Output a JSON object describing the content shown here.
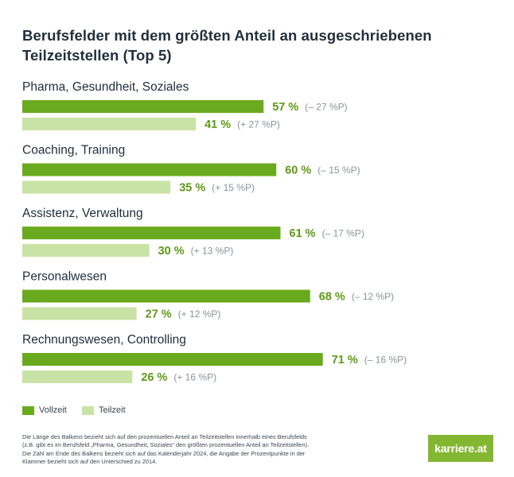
{
  "title_lines": [
    "Berufsfelder mit dem größten Anteil an ausgeschriebenen",
    "Teilzeitstellen (Top 5)"
  ],
  "colors": {
    "vollzeit": "#6aaa1e",
    "teilzeit": "#c9e3a6",
    "vollzeit_text": "#5e9a17",
    "label": "#1e2d3c",
    "change": "#8a949c"
  },
  "chart_data": {
    "type": "bar",
    "orientation": "horizontal",
    "title": "Berufsfelder mit dem größten Anteil an ausgeschriebenen Teilzeitstellen (Top 5)",
    "categories": [
      "Pharma, Gesundheit, Soziales",
      "Coaching, Training",
      "Assistenz, Verwaltung",
      "Personalwesen",
      "Rechnungswesen, Controlling"
    ],
    "series": [
      {
        "name": "Vollzeit",
        "values": [
          57,
          60,
          61,
          68,
          71
        ],
        "value_labels": [
          "57 %",
          "60 %",
          "61 %",
          "68 %",
          "71 %"
        ],
        "change_labels": [
          "(– 27 %P)",
          "(– 15 %P)",
          "(– 17 %P)",
          "(– 12 %P)",
          "(– 16 %P)"
        ]
      },
      {
        "name": "Teilzeit",
        "values": [
          41,
          35,
          30,
          27,
          26
        ],
        "value_labels": [
          "41 %",
          "35 %",
          "30 %",
          "27 %",
          "26 %"
        ],
        "change_labels": [
          "(+ 27 %P)",
          "(+ 15 %P)",
          "(+ 13 %P)",
          "(+ 12 %P)",
          "(+ 16 %P)"
        ]
      }
    ],
    "xlim": [
      0,
      100
    ],
    "grid": false,
    "legend_position": "bottom-left"
  },
  "legend": {
    "vollzeit_label": "Vollzeit",
    "teilzeit_label": "Teilzeit"
  },
  "footnote_lines": [
    "Die Länge des Balkens bezieht sich auf den prozentuellen Anteil an Teilzeitstellen innerhalb eines Berufsfelds",
    "(z.B. gibt es im Berufsfeld „Pharma, Gesundheit, Soziales“ den größten prozentuellen Anteil an Teilzeitstellen).",
    "Die Zahl am Ende des Balkens bezieht sich auf das Kalenderjahr 2024, die Angabe der Prozentpunkte in der",
    "Klammer bezieht sich auf den Unterschied zu 2014."
  ],
  "logo_text": "karriere.at"
}
